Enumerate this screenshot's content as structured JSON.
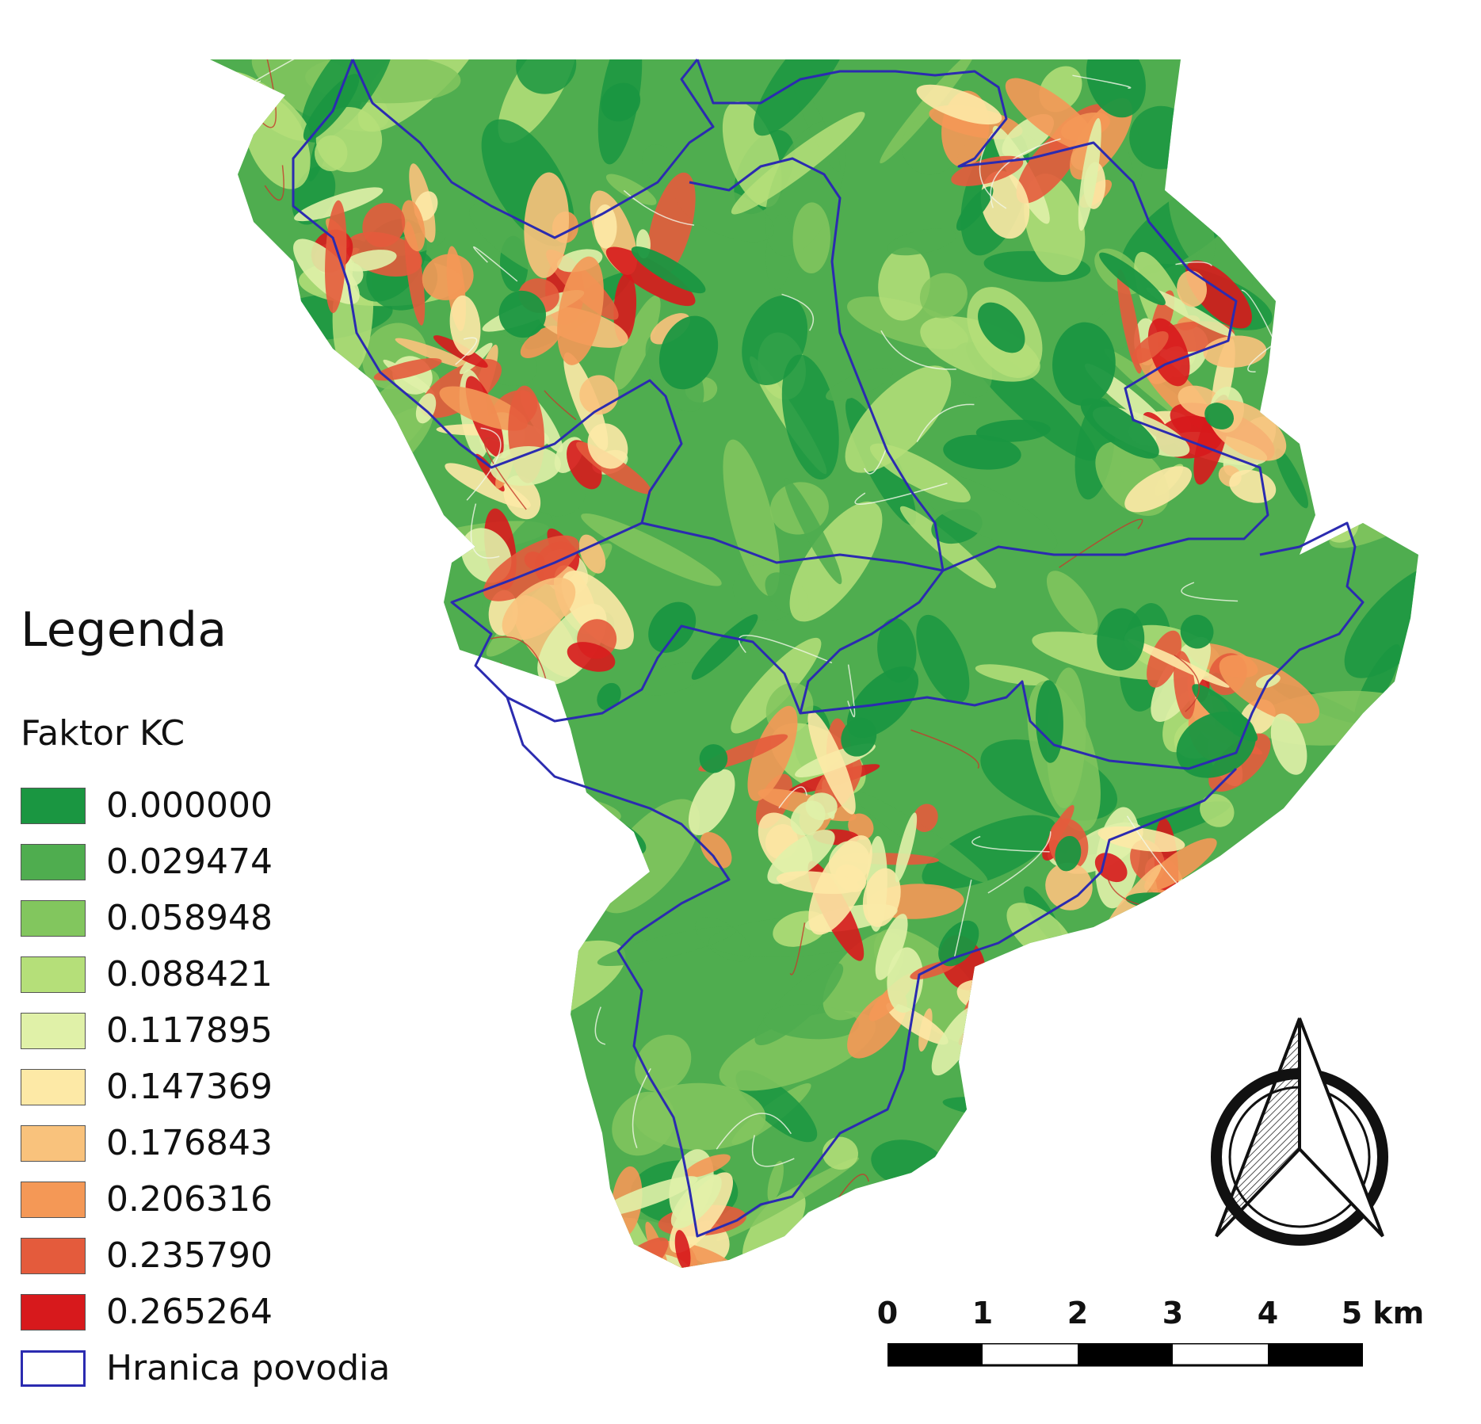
{
  "legend": {
    "title": "Legenda",
    "subtitle": "Faktor KC",
    "classes": [
      {
        "label": "0.000000",
        "color": "#1a9641"
      },
      {
        "label": "0.029474",
        "color": "#4fad4f"
      },
      {
        "label": "0.058948",
        "color": "#82c65e"
      },
      {
        "label": "0.088421",
        "color": "#b5df79"
      },
      {
        "label": "0.117895",
        "color": "#e0f1a8"
      },
      {
        "label": "0.147369",
        "color": "#fde9a6"
      },
      {
        "label": "0.176843",
        "color": "#f9c27c"
      },
      {
        "label": "0.206316",
        "color": "#f49856"
      },
      {
        "label": "0.235790",
        "color": "#e45b3c"
      },
      {
        "label": "0.265264",
        "color": "#d7191c"
      }
    ],
    "boundary": {
      "label": "Hranica povodia",
      "color": "#2b2bb0"
    }
  },
  "scalebar": {
    "labels": [
      "0",
      "1",
      "2",
      "3",
      "4",
      "5 km"
    ]
  },
  "north_arrow": {
    "icon": "north-arrow-icon"
  }
}
